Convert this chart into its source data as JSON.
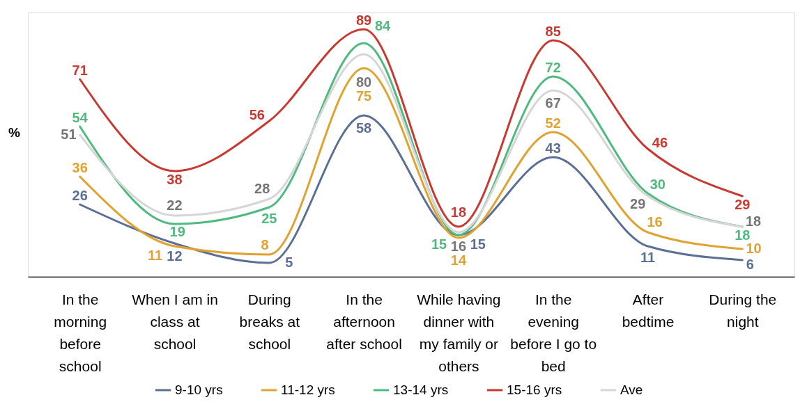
{
  "chart_data": {
    "type": "line",
    "ylabel": "%",
    "categories": [
      "In the morning before school",
      "When I am in class at school",
      "During breaks at school",
      "In the afternoon after school",
      "While having dinner with my family or others",
      "In the evening before I go to bed",
      "After bedtime",
      "During the night"
    ],
    "series": [
      {
        "name": "9-10 yrs",
        "color": "#5b6f96",
        "values": [
          26,
          12,
          5,
          58,
          15,
          43,
          11,
          6
        ]
      },
      {
        "name": "11-12 yrs",
        "color": "#e0a332",
        "values": [
          36,
          11,
          8,
          75,
          14,
          52,
          16,
          10
        ]
      },
      {
        "name": "13-14 yrs",
        "color": "#4fba7e",
        "values": [
          54,
          19,
          25,
          84,
          15,
          72,
          30,
          18
        ]
      },
      {
        "name": "15-16 yrs",
        "color": "#c83a31",
        "values": [
          71,
          38,
          56,
          89,
          18,
          85,
          46,
          29
        ]
      },
      {
        "name": "Ave",
        "color": "#d6d6d6",
        "values": [
          51,
          22,
          28,
          80,
          16,
          67,
          29,
          18
        ]
      }
    ],
    "ylim": [
      0,
      95
    ],
    "tick_labels": "x",
    "data_labels": true,
    "legend": "bottom"
  }
}
